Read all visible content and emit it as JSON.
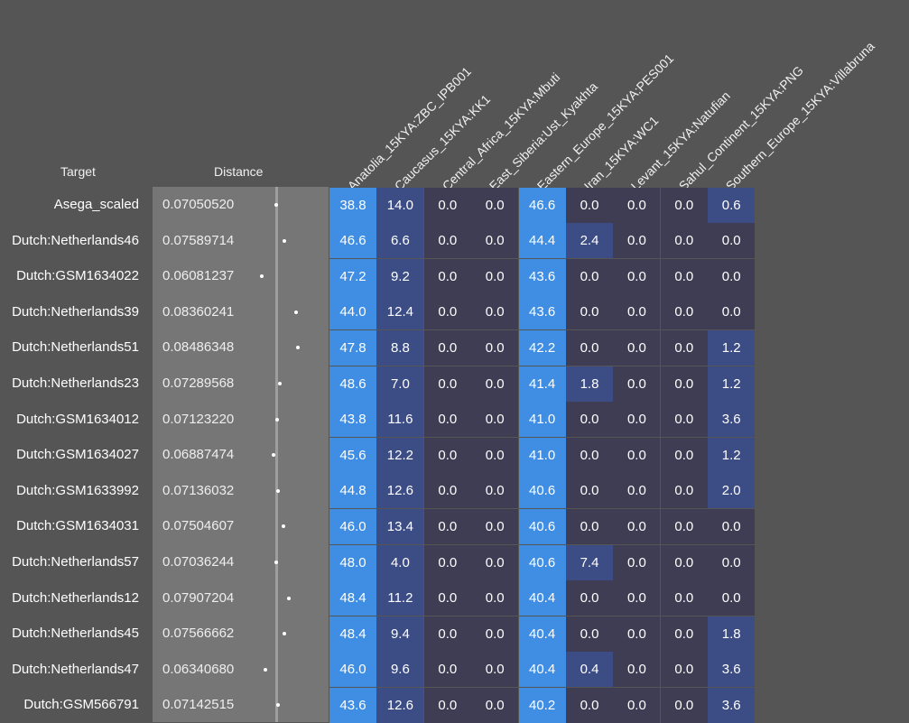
{
  "colors": {
    "background": "#555555",
    "distance_panel": "#767676",
    "cell_zero": "#3e3d54",
    "cell_low": "#3c4c85",
    "cell_high": "#3f8ee3"
  },
  "chart_data": {
    "type": "heatmap",
    "headers": {
      "target": "Target",
      "distance": "Distance"
    },
    "columns": [
      "Anatolia_15KYA:ZBC_IPB001",
      "Caucasus_15KYA:KK1",
      "Central_Africa_15KYA:Mbuti",
      "East_Siberia:Ust_Kyakhta",
      "Eastern_Europe_15KYA:PES001",
      "Iran_15KYA:WC1",
      "Levant_15KYA:Natufian",
      "Sahul_Continent_15KYA:PNG",
      "Southern_Europe_15KYA:Villabruna"
    ],
    "rows": [
      {
        "target": "Asega_scaled",
        "distance": "0.07050520",
        "values": [
          "38.8",
          "14.0",
          "0.0",
          "0.0",
          "46.6",
          "0.0",
          "0.0",
          "0.0",
          "0.6"
        ]
      },
      {
        "target": "Dutch:Netherlands46",
        "distance": "0.07589714",
        "values": [
          "46.6",
          "6.6",
          "0.0",
          "0.0",
          "44.4",
          "2.4",
          "0.0",
          "0.0",
          "0.0"
        ]
      },
      {
        "target": "Dutch:GSM1634022",
        "distance": "0.06081237",
        "values": [
          "47.2",
          "9.2",
          "0.0",
          "0.0",
          "43.6",
          "0.0",
          "0.0",
          "0.0",
          "0.0"
        ]
      },
      {
        "target": "Dutch:Netherlands39",
        "distance": "0.08360241",
        "values": [
          "44.0",
          "12.4",
          "0.0",
          "0.0",
          "43.6",
          "0.0",
          "0.0",
          "0.0",
          "0.0"
        ]
      },
      {
        "target": "Dutch:Netherlands51",
        "distance": "0.08486348",
        "values": [
          "47.8",
          "8.8",
          "0.0",
          "0.0",
          "42.2",
          "0.0",
          "0.0",
          "0.0",
          "1.2"
        ]
      },
      {
        "target": "Dutch:Netherlands23",
        "distance": "0.07289568",
        "values": [
          "48.6",
          "7.0",
          "0.0",
          "0.0",
          "41.4",
          "1.8",
          "0.0",
          "0.0",
          "1.2"
        ]
      },
      {
        "target": "Dutch:GSM1634012",
        "distance": "0.07123220",
        "values": [
          "43.8",
          "11.6",
          "0.0",
          "0.0",
          "41.0",
          "0.0",
          "0.0",
          "0.0",
          "3.6"
        ]
      },
      {
        "target": "Dutch:GSM1634027",
        "distance": "0.06887474",
        "values": [
          "45.6",
          "12.2",
          "0.0",
          "0.0",
          "41.0",
          "0.0",
          "0.0",
          "0.0",
          "1.2"
        ]
      },
      {
        "target": "Dutch:GSM1633992",
        "distance": "0.07136032",
        "values": [
          "44.8",
          "12.6",
          "0.0",
          "0.0",
          "40.6",
          "0.0",
          "0.0",
          "0.0",
          "2.0"
        ]
      },
      {
        "target": "Dutch:GSM1634031",
        "distance": "0.07504607",
        "values": [
          "46.0",
          "13.4",
          "0.0",
          "0.0",
          "40.6",
          "0.0",
          "0.0",
          "0.0",
          "0.0"
        ]
      },
      {
        "target": "Dutch:Netherlands57",
        "distance": "0.07036244",
        "values": [
          "48.0",
          "4.0",
          "0.0",
          "0.0",
          "40.6",
          "7.4",
          "0.0",
          "0.0",
          "0.0"
        ]
      },
      {
        "target": "Dutch:Netherlands12",
        "distance": "0.07907204",
        "values": [
          "48.4",
          "11.2",
          "0.0",
          "0.0",
          "40.4",
          "0.0",
          "0.0",
          "0.0",
          "0.0"
        ]
      },
      {
        "target": "Dutch:Netherlands45",
        "distance": "0.07566662",
        "values": [
          "48.4",
          "9.4",
          "0.0",
          "0.0",
          "40.4",
          "0.0",
          "0.0",
          "0.0",
          "1.8"
        ]
      },
      {
        "target": "Dutch:Netherlands47",
        "distance": "0.06340680",
        "values": [
          "46.0",
          "9.6",
          "0.0",
          "0.0",
          "40.4",
          "0.4",
          "0.0",
          "0.0",
          "3.6"
        ]
      },
      {
        "target": "Dutch:GSM566791",
        "distance": "0.07142515",
        "values": [
          "43.6",
          "12.6",
          "0.0",
          "0.0",
          "40.2",
          "0.0",
          "0.0",
          "0.0",
          "3.6"
        ]
      }
    ]
  }
}
